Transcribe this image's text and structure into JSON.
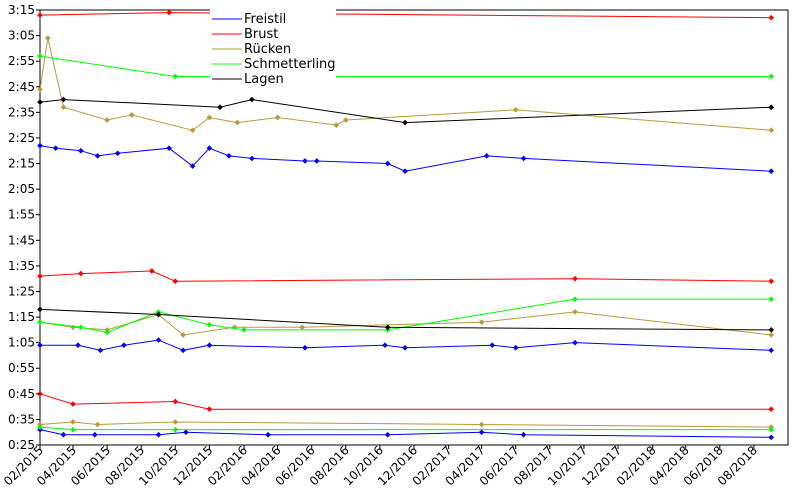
{
  "chart_data": {
    "type": "line",
    "title": "",
    "xlabel": "",
    "ylabel": "",
    "grid": false,
    "legend_position": "top-center",
    "y_unit": "minutes:seconds",
    "xlim": [
      "2015-02-01",
      "2018-10-01"
    ],
    "ylim_seconds": [
      145,
      195
    ],
    "y_ticks": [
      "0:25",
      "0:35",
      "0:45",
      "0:55",
      "1:05",
      "1:15",
      "1:25",
      "1:35",
      "1:45",
      "1:55",
      "2:05",
      "2:15",
      "2:25",
      "2:35",
      "2:45",
      "2:55",
      "3:05",
      "3:15"
    ],
    "x_ticks": [
      "02/2015",
      "04/2015",
      "06/2015",
      "08/2015",
      "10/2015",
      "12/2015",
      "02/2016",
      "04/2016",
      "06/2016",
      "08/2016",
      "10/2016",
      "12/2016",
      "02/2017",
      "04/2017",
      "06/2017",
      "08/2017",
      "10/2017",
      "12/2017",
      "02/2018",
      "04/2018",
      "06/2018",
      "08/2018"
    ],
    "series": [
      {
        "name": "Freistil",
        "color": "#0000ff",
        "lines": [
          [
            [
              "2015-02-01",
              "2:22"
            ],
            [
              "2015-03-01",
              "2:21"
            ],
            [
              "2015-04-15",
              "2:20"
            ],
            [
              "2015-05-15",
              "2:18"
            ],
            [
              "2015-06-20",
              "2:19"
            ],
            [
              "2015-09-20",
              "2:21"
            ],
            [
              "2015-11-01",
              "2:14"
            ],
            [
              "2015-12-01",
              "2:21"
            ],
            [
              "2016-01-05",
              "2:18"
            ],
            [
              "2016-02-15",
              "2:17"
            ],
            [
              "2016-05-20",
              "2:16"
            ],
            [
              "2016-06-10",
              "2:16"
            ],
            [
              "2016-10-15",
              "2:15"
            ],
            [
              "2016-11-15",
              "2:12"
            ],
            [
              "2017-04-10",
              "2:18"
            ],
            [
              "2017-06-15",
              "2:17"
            ],
            [
              "2018-09-01",
              "2:12"
            ]
          ],
          [
            [
              "2015-02-01",
              "1:04"
            ],
            [
              "2015-04-10",
              "1:04"
            ],
            [
              "2015-05-20",
              "1:02"
            ],
            [
              "2015-07-01",
              "1:04"
            ],
            [
              "2015-09-01",
              "1:06"
            ],
            [
              "2015-10-15",
              "1:02"
            ],
            [
              "2015-12-01",
              "1:04"
            ],
            [
              "2016-05-20",
              "1:03"
            ],
            [
              "2016-10-10",
              "1:04"
            ],
            [
              "2016-11-15",
              "1:03"
            ],
            [
              "2017-04-20",
              "1:04"
            ],
            [
              "2017-06-01",
              "1:03"
            ],
            [
              "2017-09-15",
              "1:05"
            ],
            [
              "2018-09-01",
              "1:02"
            ]
          ],
          [
            [
              "2015-02-01",
              "0:31"
            ],
            [
              "2015-03-15",
              "0:29"
            ],
            [
              "2015-05-10",
              "0:29"
            ],
            [
              "2015-09-01",
              "0:29"
            ],
            [
              "2015-10-20",
              "0:30"
            ],
            [
              "2016-03-15",
              "0:29"
            ],
            [
              "2016-10-15",
              "0:29"
            ],
            [
              "2017-04-01",
              "0:30"
            ],
            [
              "2017-06-15",
              "0:29"
            ],
            [
              "2018-09-01",
              "0:28"
            ]
          ]
        ]
      },
      {
        "name": "Brust",
        "color": "#ff0000",
        "lines": [
          [
            [
              "2015-02-01",
              "3:13"
            ],
            [
              "2015-09-20",
              "3:14"
            ],
            [
              "2018-09-01",
              "3:12"
            ]
          ],
          [
            [
              "2015-02-01",
              "1:31"
            ],
            [
              "2015-04-15",
              "1:32"
            ],
            [
              "2015-08-20",
              "1:33"
            ],
            [
              "2015-10-01",
              "1:29"
            ],
            [
              "2017-09-15",
              "1:30"
            ],
            [
              "2018-09-01",
              "1:29"
            ]
          ],
          [
            [
              "2015-02-01",
              "0:45"
            ],
            [
              "2015-04-01",
              "0:41"
            ],
            [
              "2015-10-01",
              "0:42"
            ],
            [
              "2015-12-01",
              "0:39"
            ],
            [
              "2018-09-01",
              "0:39"
            ]
          ]
        ]
      },
      {
        "name": "Rücken",
        "color": "#b89a3a",
        "lines": [
          [
            [
              "2015-02-01",
              "2:44"
            ],
            [
              "2015-02-15",
              "3:04"
            ],
            [
              "2015-03-15",
              "2:37"
            ],
            [
              "2015-06-01",
              "2:32"
            ],
            [
              "2015-07-15",
              "2:34"
            ],
            [
              "2015-11-01",
              "2:28"
            ],
            [
              "2015-12-01",
              "2:33"
            ],
            [
              "2016-01-20",
              "2:31"
            ],
            [
              "2016-04-01",
              "2:33"
            ],
            [
              "2016-07-15",
              "2:30"
            ],
            [
              "2016-08-01",
              "2:32"
            ],
            [
              "2017-06-01",
              "2:36"
            ],
            [
              "2018-09-01",
              "2:28"
            ]
          ],
          [
            [
              "2015-02-01",
              "1:13"
            ],
            [
              "2015-04-01",
              "1:11"
            ],
            [
              "2015-06-01",
              "1:10"
            ],
            [
              "2015-09-01",
              "1:16"
            ],
            [
              "2015-10-15",
              "1:08"
            ],
            [
              "2016-01-15",
              "1:11"
            ],
            [
              "2016-05-15",
              "1:11"
            ],
            [
              "2017-04-01",
              "1:13"
            ],
            [
              "2017-09-15",
              "1:17"
            ],
            [
              "2018-09-01",
              "1:08"
            ]
          ],
          [
            [
              "2015-02-01",
              "0:33"
            ],
            [
              "2015-04-01",
              "0:34"
            ],
            [
              "2015-05-15",
              "0:33"
            ],
            [
              "2015-10-01",
              "0:34"
            ],
            [
              "2017-04-01",
              "0:33"
            ],
            [
              "2018-09-01",
              "0:32"
            ]
          ]
        ]
      },
      {
        "name": "Schmetterling",
        "color": "#00ff00",
        "lines": [
          [
            [
              "2015-02-01",
              "2:57"
            ],
            [
              "2015-10-01",
              "2:49"
            ],
            [
              "2018-09-01",
              "2:49"
            ]
          ],
          [
            [
              "2015-02-01",
              "1:13"
            ],
            [
              "2015-04-15",
              "1:11"
            ],
            [
              "2015-06-01",
              "1:09"
            ],
            [
              "2015-09-01",
              "1:17"
            ],
            [
              "2015-12-01",
              "1:12"
            ],
            [
              "2016-02-01",
              "1:10"
            ],
            [
              "2016-10-15",
              "1:10"
            ],
            [
              "2017-09-15",
              "1:22"
            ],
            [
              "2018-09-01",
              "1:22"
            ]
          ],
          [
            [
              "2015-02-01",
              "0:32"
            ],
            [
              "2015-04-01",
              "0:31"
            ],
            [
              "2015-10-01",
              "0:31"
            ],
            [
              "2018-09-01",
              "0:31"
            ]
          ]
        ]
      },
      {
        "name": "Lagen",
        "color": "#000000",
        "lines": [
          [
            [
              "2015-02-01",
              "2:39"
            ],
            [
              "2015-03-15",
              "2:40"
            ],
            [
              "2015-12-20",
              "2:37"
            ],
            [
              "2016-02-15",
              "2:40"
            ],
            [
              "2016-11-15",
              "2:31"
            ],
            [
              "2018-09-01",
              "2:37"
            ]
          ],
          [
            [
              "2015-02-01",
              "1:18"
            ],
            [
              "2015-09-01",
              "1:16"
            ],
            [
              "2016-10-15",
              "1:11"
            ],
            [
              "2018-09-01",
              "1:10"
            ]
          ]
        ]
      }
    ]
  }
}
